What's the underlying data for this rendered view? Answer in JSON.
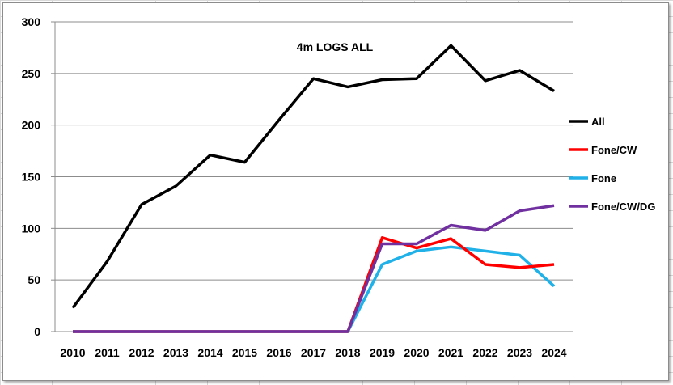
{
  "chart_data": {
    "type": "line",
    "title": "4m LOGS ALL",
    "xlabel": "",
    "ylabel": "",
    "categories": [
      "2010",
      "2011",
      "2012",
      "2013",
      "2014",
      "2015",
      "2016",
      "2017",
      "2018",
      "2019",
      "2020",
      "2021",
      "2022",
      "2023",
      "2024"
    ],
    "ylim": [
      0,
      300
    ],
    "yticks": [
      0,
      50,
      100,
      150,
      200,
      250,
      300
    ],
    "grid": "horizontal",
    "legend_position": "right",
    "series": [
      {
        "name": "All",
        "color": "#000000",
        "values": [
          23,
          68,
          123,
          141,
          171,
          164,
          205,
          245,
          237,
          244,
          245,
          277,
          243,
          253,
          233
        ]
      },
      {
        "name": "Fone/CW",
        "color": "#ff0000",
        "values": [
          0,
          0,
          0,
          0,
          0,
          0,
          0,
          0,
          0,
          91,
          81,
          90,
          65,
          62,
          65
        ]
      },
      {
        "name": "Fone",
        "color": "#1fb1e8",
        "values": [
          0,
          0,
          0,
          0,
          0,
          0,
          0,
          0,
          0,
          65,
          78,
          82,
          78,
          74,
          44
        ]
      },
      {
        "name": "Fone/CW/DG",
        "color": "#7030a0",
        "values": [
          0,
          0,
          0,
          0,
          0,
          0,
          0,
          0,
          0,
          85,
          85,
          103,
          98,
          117,
          122
        ]
      }
    ]
  }
}
